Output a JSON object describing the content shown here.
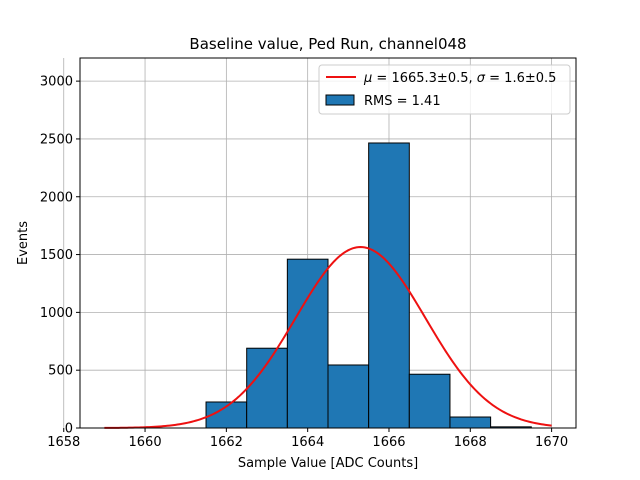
{
  "chart_data": {
    "type": "bar",
    "title": "Baseline value, Ped Run, channel048",
    "xlabel": "Sample Value [ADC Counts]",
    "ylabel": "Events",
    "xlim": [
      1658.4,
      1670.6
    ],
    "ylim": [
      0,
      3200
    ],
    "xticks": [
      1658,
      1660,
      1662,
      1664,
      1666,
      1668,
      1670
    ],
    "yticks": [
      0,
      500,
      1000,
      1500,
      2000,
      2500,
      3000
    ],
    "grid": true,
    "legend_position": "top-right",
    "histogram": {
      "name": "RMS = 1.41",
      "bins": [
        {
          "x0": 1661.5,
          "x1": 1662.5,
          "count": 225
        },
        {
          "x0": 1662.5,
          "x1": 1663.5,
          "count": 690
        },
        {
          "x0": 1663.5,
          "x1": 1664.5,
          "count": 1460
        },
        {
          "x0": 1664.5,
          "x1": 1665.5,
          "count": 545
        },
        {
          "x0": 1665.5,
          "x1": 1666.5,
          "count": 2465
        },
        {
          "x0": 1666.5,
          "x1": 1667.5,
          "count": 465
        },
        {
          "x0": 1667.5,
          "x1": 1668.5,
          "count": 95
        },
        {
          "x0": 1668.5,
          "x1": 1669.5,
          "count": 10
        }
      ],
      "color": "#1f77b4",
      "edge_color": "#000000"
    },
    "fit": {
      "name_parts": {
        "mu_symbol": "μ",
        "mu_text": " = 1665.3±0.5, ",
        "sigma_symbol": "σ",
        "sigma_text": " = 1.6±0.5"
      },
      "mu": 1665.3,
      "sigma": 1.6,
      "amplitude": 1565,
      "x_range": [
        1659,
        1670
      ],
      "color": "#ee1111"
    }
  }
}
